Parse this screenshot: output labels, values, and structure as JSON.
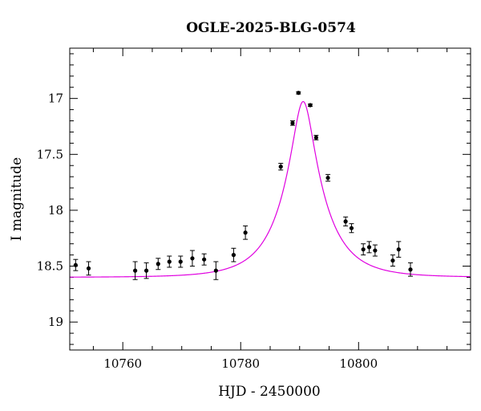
{
  "chart_data": {
    "type": "scatter",
    "title": "OGLE-2025-BLG-0574",
    "xlabel": "HJD - 2450000",
    "ylabel": "I magnitude",
    "xlim": [
      10751,
      10819
    ],
    "ylim": [
      19.25,
      16.55
    ],
    "y_inverted": true,
    "grid": false,
    "x_ticks": [
      10760,
      10780,
      10800
    ],
    "y_ticks": [
      17,
      17.5,
      18,
      18.5,
      19
    ],
    "y_tick_labels": [
      "17",
      "17.5",
      "18",
      "18.5",
      "19"
    ],
    "model_color": "#e000e0",
    "point_color": "#000000",
    "model": {
      "name": "",
      "t0": 10790.6,
      "tE": 7.0,
      "u0": 0.24,
      "baseline_mag": 18.6
    },
    "series": [
      {
        "name": "",
        "points": [
          {
            "x": 10752.0,
            "y": 18.49,
            "err": 0.05
          },
          {
            "x": 10754.2,
            "y": 18.52,
            "err": 0.06
          },
          {
            "x": 10762.1,
            "y": 18.54,
            "err": 0.08
          },
          {
            "x": 10764.0,
            "y": 18.54,
            "err": 0.07
          },
          {
            "x": 10766.0,
            "y": 18.48,
            "err": 0.05
          },
          {
            "x": 10767.9,
            "y": 18.46,
            "err": 0.05
          },
          {
            "x": 10769.8,
            "y": 18.46,
            "err": 0.05
          },
          {
            "x": 10771.8,
            "y": 18.43,
            "err": 0.07
          },
          {
            "x": 10773.8,
            "y": 18.44,
            "err": 0.05
          },
          {
            "x": 10775.8,
            "y": 18.54,
            "err": 0.08
          },
          {
            "x": 10778.8,
            "y": 18.4,
            "err": 0.06
          },
          {
            "x": 10780.8,
            "y": 18.2,
            "err": 0.06
          },
          {
            "x": 10786.8,
            "y": 17.61,
            "err": 0.03
          },
          {
            "x": 10788.8,
            "y": 17.22,
            "err": 0.02
          },
          {
            "x": 10789.8,
            "y": 16.95,
            "err": 0.01
          },
          {
            "x": 10791.8,
            "y": 17.06,
            "err": 0.01
          },
          {
            "x": 10792.8,
            "y": 17.35,
            "err": 0.02
          },
          {
            "x": 10794.8,
            "y": 17.71,
            "err": 0.03
          },
          {
            "x": 10797.8,
            "y": 18.1,
            "err": 0.04
          },
          {
            "x": 10798.8,
            "y": 18.16,
            "err": 0.04
          },
          {
            "x": 10800.8,
            "y": 18.35,
            "err": 0.05
          },
          {
            "x": 10801.8,
            "y": 18.33,
            "err": 0.05
          },
          {
            "x": 10802.8,
            "y": 18.36,
            "err": 0.05
          },
          {
            "x": 10805.8,
            "y": 18.45,
            "err": 0.05
          },
          {
            "x": 10806.8,
            "y": 18.35,
            "err": 0.07
          },
          {
            "x": 10808.8,
            "y": 18.53,
            "err": 0.06
          }
        ]
      }
    ]
  }
}
